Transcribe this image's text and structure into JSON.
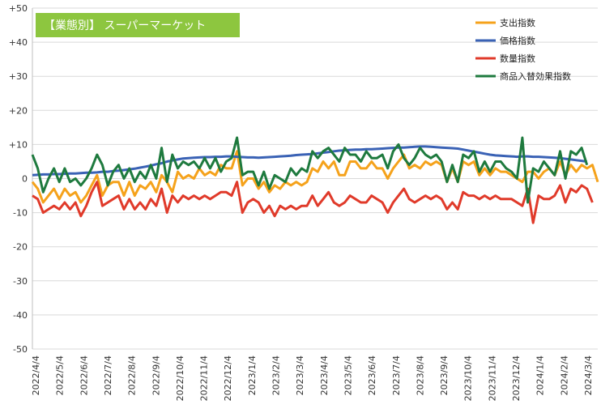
{
  "chart_data": {
    "type": "line",
    "title": "【業態別】 スーパーマーケット",
    "title_bg": "#8DC63F",
    "ylim": [
      -50,
      50
    ],
    "yticks": [
      "+50",
      "+40",
      "+30",
      "+20",
      "+10",
      "0",
      "-10",
      "-20",
      "-30",
      "-40",
      "-50"
    ],
    "grid": true,
    "legend_position": "top-right",
    "x_tick_labels": [
      "2022/4/4",
      "2022/5/4",
      "2022/6/4",
      "2022/7/4",
      "2022/8/4",
      "2022/9/4",
      "2022/10/4",
      "2022/11/4",
      "2022/12/4",
      "2023/1/4",
      "2023/2/4",
      "2023/3/4",
      "2023/4/4",
      "2023/5/4",
      "2023/6/4",
      "2023/7/4",
      "2023/8/4",
      "2023/9/4",
      "2023/10/4",
      "2023/11/4",
      "2023/12/4",
      "2024/1/4",
      "2024/2/4",
      "2024/3/4"
    ],
    "series": [
      {
        "name": "支出指数",
        "color": "#F5A21B",
        "values": [
          -1,
          -3,
          -7,
          -5,
          -3,
          -6,
          -3,
          -5,
          -4,
          -7,
          -5,
          -2,
          1,
          -5,
          -2,
          -1,
          -1,
          -5,
          -1,
          -5,
          -2,
          -3,
          -1,
          -4,
          1,
          -1,
          -4,
          2,
          0,
          1,
          0,
          3,
          1,
          2,
          1,
          4,
          3,
          3,
          8,
          -2,
          0,
          0,
          -3,
          -1,
          -4,
          -2,
          -3,
          -1,
          -2,
          -1,
          -2,
          -1,
          3,
          2,
          5,
          3,
          5,
          1,
          1,
          5,
          5,
          3,
          3,
          5,
          3,
          3,
          0,
          3,
          5,
          7,
          3,
          4,
          3,
          5,
          4,
          5,
          4,
          -1,
          3,
          -1,
          5,
          4,
          5,
          1,
          3,
          1,
          3,
          2,
          2,
          1,
          0,
          -1,
          2,
          2,
          0,
          2,
          3,
          1,
          5,
          1,
          4,
          2,
          4,
          3,
          4,
          -1
        ]
      },
      {
        "name": "価格指数",
        "color": "#3A62B5",
        "values": [
          1,
          1.1,
          1.2,
          1.2,
          1.3,
          1.3,
          1.4,
          1.5,
          1.5,
          1.6,
          1.7,
          1.7,
          1.8,
          2,
          2,
          2.2,
          2.3,
          2.5,
          2.7,
          2.9,
          3.2,
          3.5,
          3.8,
          4.2,
          4.5,
          5,
          5.3,
          5.6,
          5.9,
          6,
          6.1,
          6.2,
          6.3,
          6.3,
          6.4,
          6.4,
          6.5,
          6.5,
          6.4,
          6.3,
          6.2,
          6.2,
          6.1,
          6.2,
          6.3,
          6.4,
          6.5,
          6.6,
          6.7,
          6.9,
          7,
          7.1,
          7.2,
          7.4,
          7.6,
          7.8,
          8,
          8.2,
          8.3,
          8.4,
          8.5,
          8.5,
          8.6,
          8.6,
          8.7,
          8.8,
          8.9,
          9,
          9.1,
          9.1,
          9.2,
          9.3,
          9.4,
          9.4,
          9.3,
          9.2,
          9.1,
          9,
          8.9,
          8.8,
          8.5,
          8.2,
          7.9,
          7.6,
          7.3,
          7,
          6.8,
          6.7,
          6.6,
          6.5,
          6.4,
          6.5,
          6.5,
          6.4,
          6.4,
          6.3,
          6.2,
          6.1,
          6,
          5.8,
          5.6,
          5.4,
          5.2,
          5
        ]
      },
      {
        "name": "数量指数",
        "color": "#E03A2A",
        "values": [
          -5,
          -6,
          -10,
          -9,
          -8,
          -9,
          -7,
          -9,
          -7,
          -11,
          -8,
          -4,
          -1,
          -8,
          -7,
          -6,
          -5,
          -9,
          -6,
          -9,
          -7,
          -9,
          -6,
          -8,
          -3,
          -10,
          -5,
          -7,
          -5,
          -6,
          -5,
          -6,
          -5,
          -6,
          -5,
          -4,
          -4,
          -5,
          -1,
          -10,
          -7,
          -6,
          -7,
          -10,
          -8,
          -11,
          -8,
          -9,
          -8,
          -9,
          -8,
          -8,
          -5,
          -8,
          -6,
          -4,
          -7,
          -8,
          -7,
          -5,
          -6,
          -7,
          -7,
          -5,
          -6,
          -7,
          -10,
          -7,
          -5,
          -3,
          -6,
          -7,
          -6,
          -5,
          -6,
          -5,
          -6,
          -9,
          -7,
          -9,
          -4,
          -5,
          -5,
          -6,
          -5,
          -6,
          -5,
          -6,
          -6,
          -6,
          -7,
          -8,
          -3,
          -13,
          -5,
          -6,
          -6,
          -5,
          -2,
          -7,
          -3,
          -4,
          -2,
          -3,
          -7
        ]
      },
      {
        "name": "商品入替効果指数",
        "color": "#1E7A3E",
        "values": [
          7,
          3,
          -4,
          0,
          3,
          -1,
          3,
          -1,
          0,
          -2,
          0,
          3,
          7,
          4,
          -2,
          2,
          4,
          0,
          3,
          -1,
          2,
          0,
          4,
          0,
          9,
          -1,
          7,
          3,
          5,
          4,
          5,
          3,
          6,
          3,
          6,
          2,
          5,
          6,
          12,
          1,
          2,
          2,
          -2,
          2,
          -3,
          1,
          0,
          -1,
          3,
          1,
          3,
          2,
          8,
          6,
          8,
          9,
          7,
          5,
          9,
          7,
          7,
          5,
          8,
          6,
          6,
          7,
          3,
          8,
          10,
          6,
          4,
          6,
          9,
          7,
          6,
          7,
          5,
          -1,
          4,
          -1,
          7,
          6,
          8,
          2,
          5,
          2,
          5,
          5,
          3,
          2,
          0,
          12,
          -7,
          3,
          2,
          5,
          3,
          1,
          8,
          0,
          8,
          7,
          9,
          4
        ]
      }
    ]
  }
}
